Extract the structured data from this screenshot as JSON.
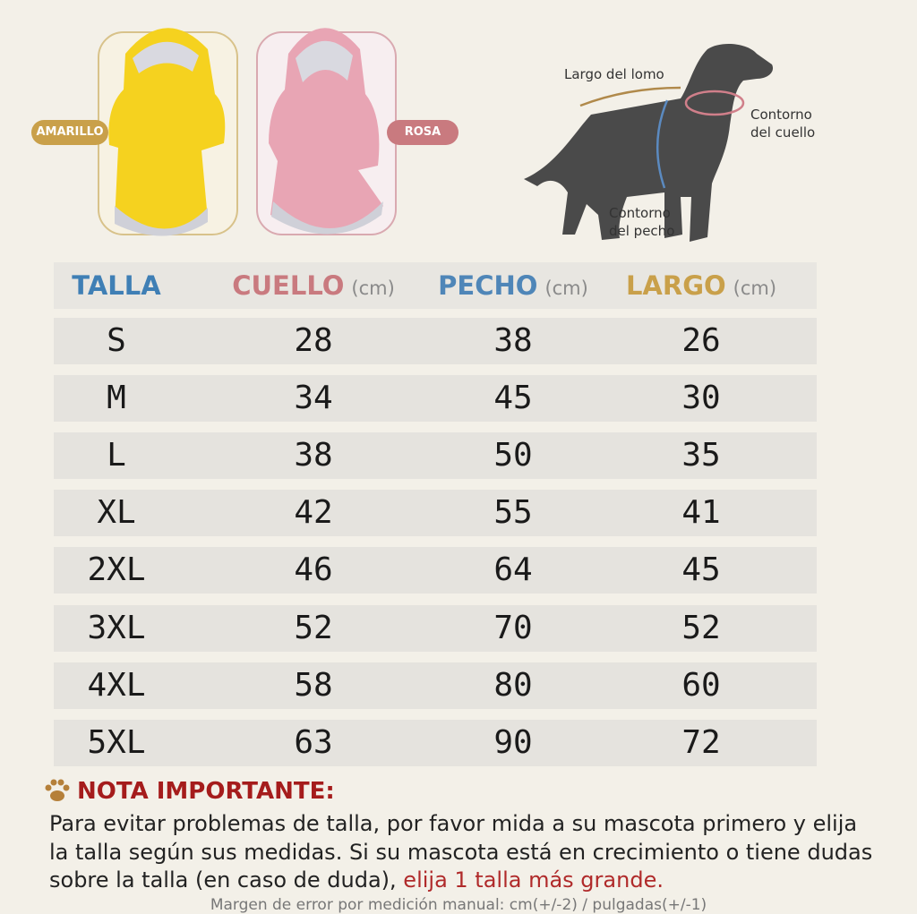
{
  "products": {
    "labels": [
      "AMARILLO",
      "ROSA"
    ]
  },
  "diagram": {
    "back_length": "Largo del lomo",
    "neck": "Contorno del cuello",
    "chest": "Contorno del pecho"
  },
  "table": {
    "headers": [
      {
        "name": "TALLA"
      },
      {
        "name": "CUELLO",
        "unit": "(cm)"
      },
      {
        "name": "PECHO",
        "unit": "(cm)"
      },
      {
        "name": "LARGO",
        "unit": "(cm)"
      }
    ],
    "rows": [
      [
        "S",
        28,
        38,
        26
      ],
      [
        "M",
        34,
        45,
        30
      ],
      [
        "L",
        38,
        50,
        35
      ],
      [
        "XL",
        42,
        55,
        41
      ],
      [
        "2XL",
        46,
        64,
        45
      ],
      [
        "3XL",
        52,
        70,
        52
      ],
      [
        "4XL",
        58,
        80,
        60
      ],
      [
        "5XL",
        63,
        90,
        72
      ]
    ]
  },
  "note": {
    "title": "NOTA IMPORTANTE:",
    "text": "Para evitar problemas de talla, por favor mida a su mascota primero y elija la talla según sus medidas. Si su mascota está en crecimiento o tiene dudas sobre la talla (en caso de duda),",
    "highlight": "elija 1 talla más grande."
  },
  "footer": "Margen de error por medición manual: cm(+/-2) / pulgadas(+/-1)"
}
